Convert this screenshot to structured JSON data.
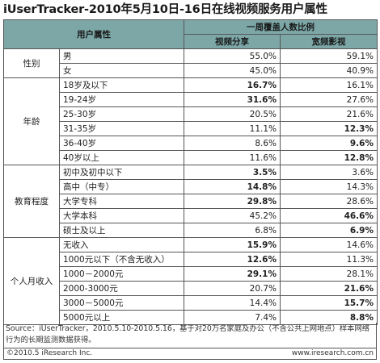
{
  "title": "iUserTracker-2010年5月10日-16日在线视频服务用户属性",
  "header": {
    "attr_label": "用户属性",
    "group_label": "一周覆盖人数比例",
    "col1": "视频分享",
    "col2": "宽频影视"
  },
  "chart_data": {
    "type": "table",
    "title": "iUserTracker-2010年5月10日-16日在线视频服务用户属性",
    "columns": [
      "视频分享",
      "宽频影视"
    ],
    "groups": [
      {
        "name": "性别",
        "rows": [
          {
            "label": "男",
            "values": [
              "55.0%",
              "59.1%"
            ],
            "bold": [
              false,
              false
            ]
          },
          {
            "label": "女",
            "values": [
              "45.0%",
              "40.9%"
            ],
            "bold": [
              false,
              false
            ]
          }
        ]
      },
      {
        "name": "年龄",
        "rows": [
          {
            "label": "18岁及以下",
            "values": [
              "16.7%",
              "16.1%"
            ],
            "bold": [
              true,
              false
            ]
          },
          {
            "label": "19-24岁",
            "values": [
              "31.6%",
              "27.6%"
            ],
            "bold": [
              true,
              false
            ]
          },
          {
            "label": "25-30岁",
            "values": [
              "20.5%",
              "21.6%"
            ],
            "bold": [
              false,
              false
            ]
          },
          {
            "label": "31-35岁",
            "values": [
              "11.1%",
              "12.3%"
            ],
            "bold": [
              false,
              true
            ]
          },
          {
            "label": "36-40岁",
            "values": [
              "8.6%",
              "9.6%"
            ],
            "bold": [
              false,
              true
            ]
          },
          {
            "label": "40岁以上",
            "values": [
              "11.6%",
              "12.8%"
            ],
            "bold": [
              false,
              true
            ]
          }
        ]
      },
      {
        "name": "教育程度",
        "rows": [
          {
            "label": "初中及初中以下",
            "values": [
              "3.5%",
              "3.6%"
            ],
            "bold": [
              true,
              false
            ]
          },
          {
            "label": "高中（中专）",
            "values": [
              "14.8%",
              "14.3%"
            ],
            "bold": [
              true,
              false
            ]
          },
          {
            "label": "大学专科",
            "values": [
              "29.8%",
              "28.6%"
            ],
            "bold": [
              true,
              false
            ]
          },
          {
            "label": "大学本科",
            "values": [
              "45.2%",
              "46.6%"
            ],
            "bold": [
              false,
              true
            ]
          },
          {
            "label": "硕士及以上",
            "values": [
              "6.8%",
              "6.9%"
            ],
            "bold": [
              false,
              true
            ]
          }
        ]
      },
      {
        "name": "个人月收入",
        "rows": [
          {
            "label": "无收入",
            "values": [
              "15.9%",
              "14.6%"
            ],
            "bold": [
              true,
              false
            ]
          },
          {
            "label": "1000元以下（不含无收入）",
            "values": [
              "12.6%",
              "11.3%"
            ],
            "bold": [
              true,
              false
            ]
          },
          {
            "label": "1000－2000元",
            "values": [
              "29.1%",
              "28.1%"
            ],
            "bold": [
              true,
              false
            ]
          },
          {
            "label": "2000-3000元",
            "values": [
              "20.7%",
              "21.6%"
            ],
            "bold": [
              false,
              true
            ]
          },
          {
            "label": "3000－5000元",
            "values": [
              "14.4%",
              "15.7%"
            ],
            "bold": [
              false,
              true
            ]
          },
          {
            "label": "5000元以上",
            "values": [
              "7.4%",
              "8.8%"
            ],
            "bold": [
              false,
              true
            ]
          }
        ]
      }
    ]
  },
  "source": "Source：iUserTracker，2010.5.10-2010.5.16，基于对20万名家庭及办公（不含公共上网地点）样本网络行为的长期监测数据获得。",
  "footer": {
    "copyright": "©2010.5 iResearch Inc.",
    "website": "www.iresearch.com.cn"
  }
}
